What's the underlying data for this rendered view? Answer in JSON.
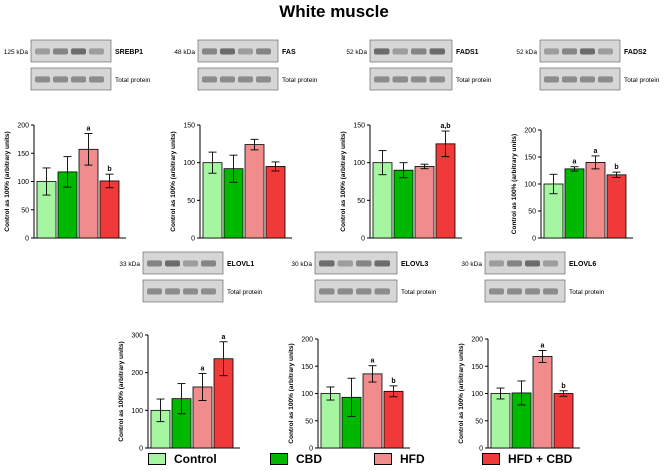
{
  "figure_title": "White muscle",
  "legend": [
    {
      "label": "Control",
      "color": "#a6f5a0"
    },
    {
      "label": "CBD",
      "color": "#00b800"
    },
    {
      "label": "HFD",
      "color": "#f08c8c"
    },
    {
      "label": "HFD + CBD",
      "color": "#f03a3a"
    }
  ],
  "blot_common": {
    "loading_label": "Total protein"
  },
  "chart_data": [
    {
      "type": "bar",
      "protein": "SREBP1",
      "kda": "125 kDa",
      "categories": [
        "Control",
        "CBD",
        "HFD",
        "HFD + CBD"
      ],
      "values": [
        100,
        117,
        157,
        101
      ],
      "errors": [
        24,
        27,
        28,
        12
      ],
      "letters": [
        "",
        "",
        "a",
        "b"
      ],
      "ylabel": "Control as 100% (arbitrary units)",
      "ylim": [
        0,
        200
      ],
      "yticks": [
        "0",
        "50",
        "100",
        "150",
        "200"
      ]
    },
    {
      "type": "bar",
      "protein": "FAS",
      "kda": "48 kDa",
      "categories": [
        "Control",
        "CBD",
        "HFD",
        "HFD + CBD"
      ],
      "values": [
        100,
        92,
        124,
        95
      ],
      "errors": [
        14,
        18,
        7,
        6
      ],
      "letters": [
        "",
        "",
        "",
        ""
      ],
      "ylabel": "Control as 100% (arbitrary units)",
      "ylim": [
        0,
        150
      ],
      "yticks": [
        "0",
        "50",
        "100",
        "150"
      ]
    },
    {
      "type": "bar",
      "protein": "FADS1",
      "kda": "52 kDa",
      "categories": [
        "Control",
        "CBD",
        "HFD",
        "HFD + CBD"
      ],
      "values": [
        100,
        90,
        95,
        125
      ],
      "errors": [
        16,
        10,
        3,
        17
      ],
      "letters": [
        "",
        "",
        "",
        "a,b"
      ],
      "ylabel": "Control as 100% (arbitrary units)",
      "ylim": [
        0,
        150
      ],
      "yticks": [
        "0",
        "50",
        "100",
        "150"
      ]
    },
    {
      "type": "bar",
      "protein": "FADS2",
      "kda": "52 kDa",
      "categories": [
        "Control",
        "CBD",
        "HFD",
        "HFD + CBD"
      ],
      "values": [
        100,
        128,
        140,
        117
      ],
      "errors": [
        18,
        4,
        12,
        5
      ],
      "letters": [
        "",
        "a",
        "a",
        "b"
      ],
      "ylabel": "Control as 100% (arbitrary units)",
      "ylim": [
        0,
        200
      ],
      "yticks": [
        "0",
        "50",
        "100",
        "150",
        "200"
      ]
    },
    {
      "type": "bar",
      "protein": "ELOVL1",
      "kda": "33 kDa",
      "categories": [
        "Control",
        "CBD",
        "HFD",
        "HFD + CBD"
      ],
      "values": [
        100,
        131,
        162,
        237
      ],
      "errors": [
        30,
        40,
        36,
        45
      ],
      "letters": [
        "",
        "",
        "a",
        "a"
      ],
      "ylabel": "Control as 100% (arbitrary units)",
      "ylim": [
        0,
        300
      ],
      "yticks": [
        "0",
        "100",
        "200",
        "300"
      ]
    },
    {
      "type": "bar",
      "protein": "ELOVL3",
      "kda": "30 kDa",
      "categories": [
        "Control",
        "CBD",
        "HFD",
        "HFD + CBD"
      ],
      "values": [
        100,
        93,
        136,
        104
      ],
      "errors": [
        12,
        35,
        15,
        10
      ],
      "letters": [
        "",
        "",
        "a",
        "b"
      ],
      "ylabel": "Control as 100% (arbitrary units)",
      "ylim": [
        0,
        200
      ],
      "yticks": [
        "0",
        "50",
        "100",
        "150",
        "200"
      ]
    },
    {
      "type": "bar",
      "protein": "ELOVL6",
      "kda": "30 kDa",
      "categories": [
        "Control",
        "CBD",
        "HFD",
        "HFD + CBD"
      ],
      "values": [
        100,
        101,
        168,
        100
      ],
      "errors": [
        10,
        22,
        11,
        5
      ],
      "letters": [
        "",
        "",
        "a",
        "b"
      ],
      "ylabel": "Control as 100% (arbitrary units)",
      "ylim": [
        0,
        200
      ],
      "yticks": [
        "0",
        "50",
        "100",
        "150",
        "200"
      ]
    }
  ]
}
